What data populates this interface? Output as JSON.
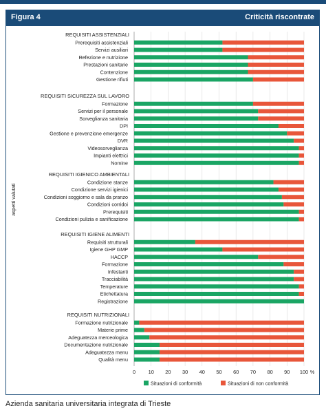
{
  "header": {
    "figure": "Figura 4",
    "title": "Criticità riscontrate"
  },
  "footer": {
    "source": "Azienda sanitaria universitaria integrata di Trieste"
  },
  "colors": {
    "conform": "#1aa564",
    "nonconform": "#e8563a",
    "header": "#1a4b78"
  },
  "chart_data": {
    "type": "bar",
    "orientation": "horizontal",
    "stacked": true,
    "ylabel": "aspetti valutati",
    "xlim": [
      0,
      100
    ],
    "xticks": [
      0,
      10,
      20,
      30,
      40,
      50,
      60,
      70,
      80,
      90,
      100
    ],
    "xunit": "%",
    "legend": [
      "Situazioni di conformità",
      "Situazioni di non conformità"
    ],
    "groups": [
      {
        "title": "REQUISITI ASSISTENZIALI",
        "items": [
          {
            "label": "Prerequisiti assistenziali",
            "conform": 52,
            "nonconform": 48
          },
          {
            "label": "Servizi ausiliari",
            "conform": 52,
            "nonconform": 48
          },
          {
            "label": "Refezione e nutrizione",
            "conform": 67,
            "nonconform": 33
          },
          {
            "label": "Prestazioni sanitarie",
            "conform": 67,
            "nonconform": 33
          },
          {
            "label": "Contenzione",
            "conform": 67,
            "nonconform": 33
          },
          {
            "label": "Gestione rifiuti",
            "conform": 70,
            "nonconform": 30
          }
        ]
      },
      {
        "title": "REQUISITI SICUREZZA SUL LAVORO",
        "items": [
          {
            "label": "Formazione",
            "conform": 70,
            "nonconform": 30
          },
          {
            "label": "Servizi per il personale",
            "conform": 73,
            "nonconform": 27
          },
          {
            "label": "Sorveglianza sanitaria",
            "conform": 73,
            "nonconform": 27
          },
          {
            "label": "DPI",
            "conform": 85,
            "nonconform": 15
          },
          {
            "label": "Gestione e prevenzione emergenze",
            "conform": 90,
            "nonconform": 10
          },
          {
            "label": "DVR",
            "conform": 94,
            "nonconform": 6
          },
          {
            "label": "Videosorveglianza",
            "conform": 97,
            "nonconform": 3
          },
          {
            "label": "Impianti elettrici",
            "conform": 97,
            "nonconform": 3
          },
          {
            "label": "Nomine",
            "conform": 97,
            "nonconform": 3
          }
        ]
      },
      {
        "title": "REQUISITI IGIENICO AMBIENTALI",
        "items": [
          {
            "label": "Condizione stanze",
            "conform": 82,
            "nonconform": 18
          },
          {
            "label": "Condizione servizi igienici",
            "conform": 85,
            "nonconform": 15
          },
          {
            "label": "Condizioni soggiorno e sala da pranzo",
            "conform": 87,
            "nonconform": 13
          },
          {
            "label": "Condizioni corridoi",
            "conform": 88,
            "nonconform": 12
          },
          {
            "label": "Prerequisiti",
            "conform": 97,
            "nonconform": 3
          },
          {
            "label": "Condizioni pulizia e sanificazione",
            "conform": 97,
            "nonconform": 3
          }
        ]
      },
      {
        "title": "REQUISITI IGIENE ALIMENTI",
        "items": [
          {
            "label": "Requisiti strutturali",
            "conform": 36,
            "nonconform": 64
          },
          {
            "label": "Igiene GHP GMP",
            "conform": 52,
            "nonconform": 48
          },
          {
            "label": "HACCP",
            "conform": 73,
            "nonconform": 27
          },
          {
            "label": "Formazione",
            "conform": 88,
            "nonconform": 12
          },
          {
            "label": "Infestanti",
            "conform": 94,
            "nonconform": 6
          },
          {
            "label": "Tracciabilità",
            "conform": 94,
            "nonconform": 6
          },
          {
            "label": "Temperature",
            "conform": 97,
            "nonconform": 3
          },
          {
            "label": "Etichettatura",
            "conform": 97,
            "nonconform": 3
          },
          {
            "label": "Registrazione",
            "conform": 100,
            "nonconform": 0
          }
        ]
      },
      {
        "title": "REQUISITI NUTRIZIONALI",
        "items": [
          {
            "label": "Formazione nutrizionale",
            "conform": 3,
            "nonconform": 97
          },
          {
            "label": "Materie prime",
            "conform": 6,
            "nonconform": 94
          },
          {
            "label": "Adeguatezza merceologica",
            "conform": 9,
            "nonconform": 91
          },
          {
            "label": "Documentazione nutrizionale",
            "conform": 15,
            "nonconform": 85
          },
          {
            "label": "Adeguatezza menu",
            "conform": 15,
            "nonconform": 85
          },
          {
            "label": "Qualità menu",
            "conform": 15,
            "nonconform": 85
          }
        ]
      }
    ]
  }
}
